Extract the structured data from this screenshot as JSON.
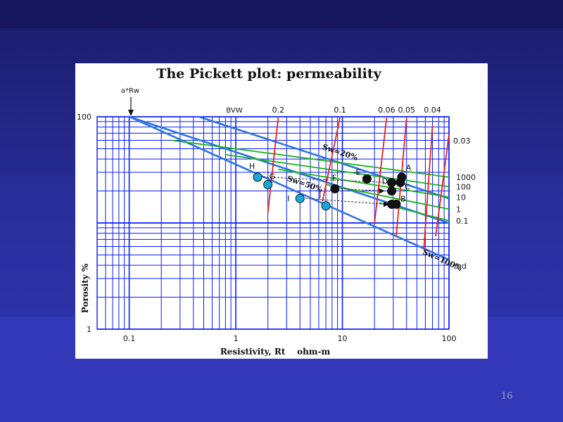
{
  "slide": {
    "number": "16"
  },
  "chart_data": {
    "type": "scatter",
    "title": "The Pickett plot: permeability",
    "xlabel": "Resistivity, Rt    ohm-m",
    "ylabel": "Porosity %",
    "xscale": "log",
    "yscale": "log",
    "xlim": [
      0.05,
      100
    ],
    "ylim": [
      1,
      100
    ],
    "xticks": [
      "0.1",
      "1",
      "10",
      "100"
    ],
    "yticks": [
      "100",
      "1"
    ],
    "grid": true,
    "arw_label": "a*Rw",
    "bvw_label": "BVW",
    "perm_unit": "md",
    "bvw_lines": [
      {
        "label": "0.2",
        "x": [
          2.0,
          2.5
        ],
        "y": [
          12.5,
          98
        ]
      },
      {
        "label": "0.1",
        "x": [
          6.5,
          9.5
        ],
        "y": [
          16,
          98
        ]
      },
      {
        "label": "0.06",
        "x": [
          20,
          26
        ],
        "y": [
          10,
          98
        ]
      },
      {
        "label": "0.05",
        "x": [
          32,
          40
        ],
        "y": [
          7.5,
          98
        ]
      },
      {
        "label": "0.04",
        "x": [
          58,
          70
        ],
        "y": [
          5.6,
          82
        ]
      },
      {
        "label": "0.03",
        "x": [
          75,
          100
        ],
        "y": [
          7.5,
          68
        ]
      }
    ],
    "sw_lines": [
      {
        "label": "Sw=20%",
        "x": [
          0.45,
          100
        ],
        "y": [
          100,
          17
        ]
      },
      {
        "label": "Sw=50%",
        "x": [
          0.1,
          100
        ],
        "y": [
          100,
          10
        ]
      },
      {
        "label": "Sw=100%",
        "x": [
          0.1,
          100
        ],
        "y": [
          100,
          4.5
        ]
      }
    ],
    "perm_lines": [
      {
        "label": "1000",
        "x": [
          0.25,
          100
        ],
        "y": [
          60,
          27
        ]
      },
      {
        "label": "100",
        "x": [
          0.8,
          100
        ],
        "y": [
          44,
          22
        ]
      },
      {
        "label": "10",
        "x": [
          2.5,
          100
        ],
        "y": [
          32,
          17.5
        ]
      },
      {
        "label": "1",
        "x": [
          7,
          100
        ],
        "y": [
          23,
          13.5
        ]
      },
      {
        "label": "0.1",
        "x": [
          22,
          100
        ],
        "y": [
          15.5,
          10.5
        ]
      }
    ],
    "points": [
      {
        "label": "A",
        "x": 36,
        "y": 27,
        "color": "#111111"
      },
      {
        "label": "B",
        "x": 32,
        "y": 15,
        "color": "#111111"
      },
      {
        "label": "C",
        "x": 35,
        "y": 24,
        "color": "#111111"
      },
      {
        "label": "",
        "x": 29,
        "y": 24,
        "color": "#111111"
      },
      {
        "label": "D",
        "x": 29,
        "y": 20,
        "color": "#111111"
      },
      {
        "label": "",
        "x": 29,
        "y": 15,
        "color": "#111111"
      },
      {
        "label": "E",
        "x": 17,
        "y": 26,
        "color": "#111111"
      },
      {
        "label": "F",
        "x": 8.5,
        "y": 21,
        "color": "#111111"
      },
      {
        "label": "G",
        "x": 2,
        "y": 23,
        "color": "#19a9d9"
      },
      {
        "label": "H",
        "x": 1.6,
        "y": 27,
        "color": "#19a9d9"
      },
      {
        "label": "I",
        "x": 4,
        "y": 17,
        "color": "#19a9d9"
      },
      {
        "label": "J",
        "x": 7,
        "y": 14.5,
        "color": "#19a9d9"
      }
    ]
  },
  "colors": {
    "grid": "#0a1cff",
    "bvw": "#e82020",
    "sw": "#2e72e6",
    "perm": "#18b418",
    "point_dark": "#111111",
    "point_cyan": "#19a9d9"
  }
}
